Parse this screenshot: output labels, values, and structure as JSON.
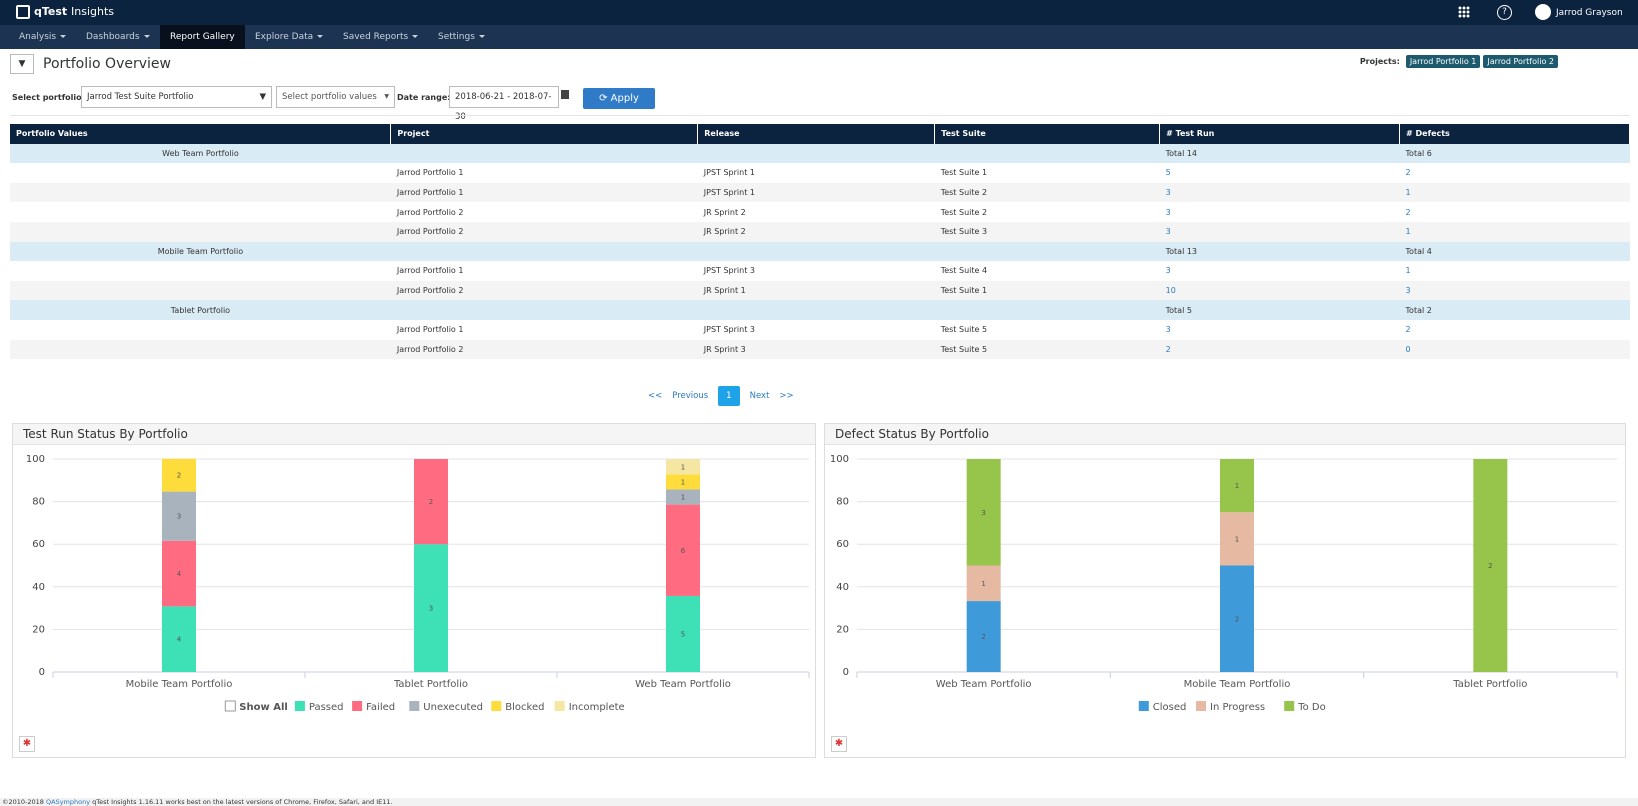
{
  "header": {
    "brand": "qTest",
    "product": "Insights",
    "user": "Jarrod Grayson",
    "nav": [
      "Analysis",
      "Dashboards",
      "Report Gallery",
      "Explore Data",
      "Saved Reports",
      "Settings"
    ],
    "active_nav": 2
  },
  "toolbar": {
    "title": "Portfolio Overview",
    "projects_label": "Projects:",
    "projects": [
      "Jarrod Portfolio 1",
      "Jarrod Portfolio 2"
    ],
    "portfolio_label": "Select portfolio:",
    "portfolio_value": "Jarrod Test Suite Portfolio",
    "values_placeholder": "Select portfolio values",
    "date_label": "Date range:",
    "date_value": "2018-06-21 - 2018-07-30",
    "apply": "Apply"
  },
  "table": {
    "headers": [
      "Portfolio Values",
      "Project",
      "Release",
      "Test Suite",
      "# Test Run",
      "# Defects"
    ],
    "groups": [
      {
        "name": "Web Team Portfolio",
        "total_runs": "Total 14",
        "total_defects": "Total 6",
        "rows": [
          [
            "Jarrod Portfolio 1",
            "JPST Sprint 1",
            "Test Suite 1",
            5,
            2
          ],
          [
            "Jarrod Portfolio 1",
            "JPST Sprint 1",
            "Test Suite 2",
            3,
            1
          ],
          [
            "Jarrod Portfolio 2",
            "JR Sprint 2",
            "Test Suite 2",
            3,
            2
          ],
          [
            "Jarrod Portfolio 2",
            "JR Sprint 2",
            "Test Suite 3",
            3,
            1
          ]
        ]
      },
      {
        "name": "Mobile Team Portfolio",
        "total_runs": "Total 13",
        "total_defects": "Total 4",
        "rows": [
          [
            "Jarrod Portfolio 1",
            "JPST Sprint 3",
            "Test Suite 4",
            3,
            1
          ],
          [
            "Jarrod Portfolio 2",
            "JR Sprint 1",
            "Test Suite 1",
            10,
            3
          ]
        ]
      },
      {
        "name": "Tablet Portfolio",
        "total_runs": "Total 5",
        "total_defects": "Total 2",
        "rows": [
          [
            "Jarrod Portfolio 1",
            "JPST Sprint 3",
            "Test Suite 5",
            3,
            2
          ],
          [
            "Jarrod Portfolio 2",
            "JR Sprint 3",
            "Test Suite 5",
            2,
            0
          ]
        ]
      }
    ]
  },
  "pagination": [
    "<<",
    "Previous",
    "1",
    "Next",
    ">>"
  ],
  "chart_data": [
    {
      "type": "bar",
      "stacked": true,
      "title": "Test Run Status By Portfolio",
      "show_all_label": "Show All",
      "categories": [
        "Mobile Team Portfolio",
        "Tablet Portfolio",
        "Web Team Portfolio"
      ],
      "ylim": [
        0,
        100
      ],
      "yticks": [
        0,
        20,
        40,
        60,
        80,
        100
      ],
      "grid": true,
      "series": [
        {
          "name": "Passed",
          "color": "#3ee0b6",
          "values": [
            30.8,
            60,
            35.7
          ],
          "counts": [
            4,
            3,
            5
          ]
        },
        {
          "name": "Failed",
          "color": "#ff6b80",
          "values": [
            30.8,
            40,
            42.9
          ],
          "counts": [
            4,
            2,
            6
          ]
        },
        {
          "name": "Unexecuted",
          "color": "#a9b3be",
          "values": [
            23.1,
            0,
            7.1
          ],
          "counts": [
            3,
            null,
            1
          ]
        },
        {
          "name": "Blocked",
          "color": "#fddc3c",
          "values": [
            15.4,
            0,
            7.1
          ],
          "counts": [
            2,
            null,
            1
          ]
        },
        {
          "name": "Incomplete",
          "color": "#f5e6a2",
          "values": [
            0,
            0,
            7.1
          ],
          "counts": [
            null,
            null,
            1
          ]
        }
      ]
    },
    {
      "type": "bar",
      "stacked": true,
      "title": "Defect Status By Portfolio",
      "categories": [
        "Web Team Portfolio",
        "Mobile Team Portfolio",
        "Tablet Portfolio"
      ],
      "ylim": [
        0,
        100
      ],
      "yticks": [
        0,
        20,
        40,
        60,
        80,
        100
      ],
      "grid": true,
      "series": [
        {
          "name": "Closed",
          "color": "#3e9ad8",
          "values": [
            33.3,
            50,
            0
          ],
          "counts": [
            2,
            2,
            null
          ]
        },
        {
          "name": "In Progress",
          "color": "#e6b9a3",
          "values": [
            16.7,
            25,
            0
          ],
          "counts": [
            1,
            1,
            null
          ]
        },
        {
          "name": "To Do",
          "color": "#97c44b",
          "values": [
            50,
            25,
            100
          ],
          "counts": [
            3,
            1,
            2
          ]
        }
      ]
    }
  ],
  "footer": {
    "copyright": "©2010-2018",
    "company": "QASymphony",
    "note": "qTest Insights 1.16.11 works best on the latest versions of Chrome, Firefox, Safari, and IE11."
  }
}
